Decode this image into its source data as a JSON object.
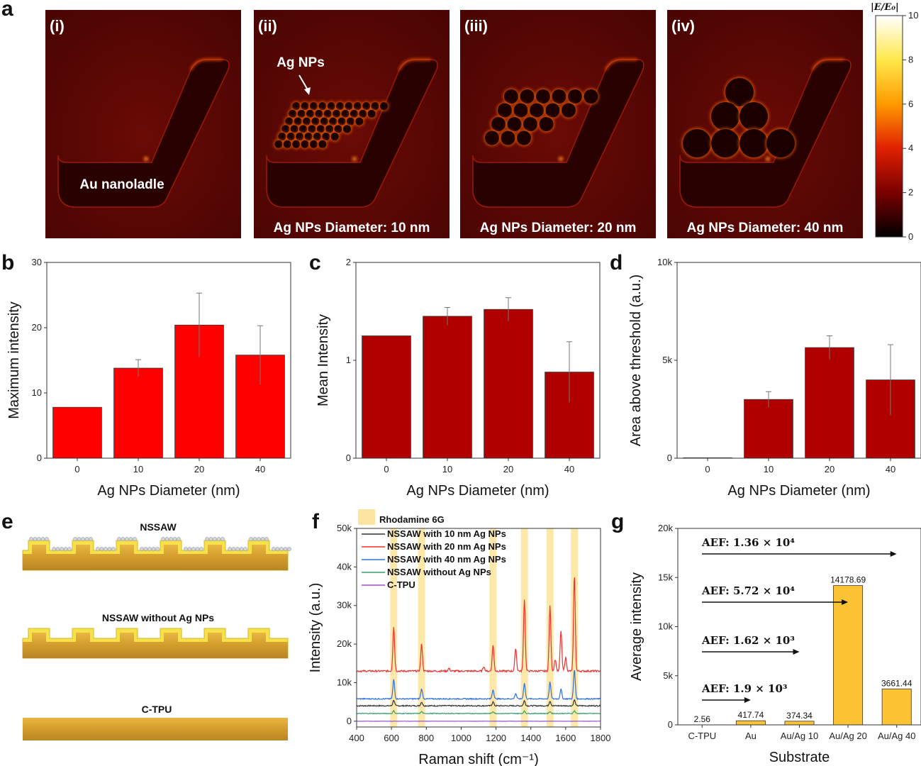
{
  "panel_labels": {
    "a": "a",
    "b": "b",
    "c": "c",
    "d": "d",
    "e": "e",
    "f": "f",
    "g": "g"
  },
  "panel_a": {
    "subpanels": [
      {
        "tag": "(i)",
        "caption": "Au nanoladle",
        "nps": 0
      },
      {
        "tag": "(ii)",
        "caption": "Ag NPs Diameter: 10 nm",
        "annotation": "Ag NPs",
        "nps": 10
      },
      {
        "tag": "(iii)",
        "caption": "Ag NPs Diameter: 20 nm",
        "nps": 20
      },
      {
        "tag": "(iv)",
        "caption": "Ag NPs Diameter: 40 nm",
        "nps": 40
      }
    ],
    "colorbar": {
      "title": "|E/E₀|",
      "ticks": [
        "10",
        "8",
        "6",
        "4",
        "2",
        "0"
      ],
      "stops": [
        "#ffffff",
        "#ffe84a",
        "#ff9a00",
        "#e02000",
        "#7a0000",
        "#000000"
      ]
    }
  },
  "panel_e": {
    "labels": [
      "NSSAW",
      "NSSAW without Ag NPs",
      "C-TPU"
    ]
  },
  "colors": {
    "red": "#ff0000",
    "darkred": "#b00000",
    "gold": "#fcc435",
    "gold_band": "#fde4a0"
  },
  "chart_data": [
    {
      "id": "b",
      "type": "bar",
      "categories": [
        "0",
        "10",
        "20",
        "40"
      ],
      "values": [
        7.8,
        13.8,
        20.4,
        15.8
      ],
      "errors": [
        0,
        1.3,
        4.9,
        4.5
      ],
      "ylim": [
        0,
        30
      ],
      "yticks": [
        "0",
        "10",
        "20",
        "30"
      ],
      "ylabel": "Maximum intensity",
      "xlabel": "Ag NPs Diameter (nm)",
      "color": "#ff0000"
    },
    {
      "id": "c",
      "type": "bar",
      "categories": [
        "0",
        "10",
        "20",
        "40"
      ],
      "values": [
        1.25,
        1.45,
        1.52,
        0.88
      ],
      "errors": [
        0,
        0.09,
        0.12,
        0.31
      ],
      "ylim": [
        0,
        2
      ],
      "yticks": [
        "0",
        "1",
        "2"
      ],
      "ylabel": "Mean Intensity",
      "xlabel": "Ag NPs Diameter (nm)",
      "color": "#b00000"
    },
    {
      "id": "d",
      "type": "bar",
      "categories": [
        "0",
        "10",
        "20",
        "40"
      ],
      "values": [
        20,
        3000,
        5650,
        4000
      ],
      "errors": [
        0,
        400,
        600,
        1800
      ],
      "ylim": [
        0,
        10000
      ],
      "yticks": [
        "0",
        "5k",
        "10k"
      ],
      "ylabel": "Area above threshold (a.u.)",
      "xlabel": "Ag NPs Diameter (nm)",
      "color": "#b00000"
    },
    {
      "id": "f",
      "type": "line",
      "xlim": [
        400,
        1800
      ],
      "ylim": [
        -1500,
        50000
      ],
      "xticks": [
        "400",
        "600",
        "800",
        "1000",
        "1200",
        "1400",
        "1600",
        "1800"
      ],
      "yticks": [
        "0",
        "10k",
        "20k",
        "30k",
        "40k",
        "50k"
      ],
      "xlabel": "Raman shift (cm⁻¹)",
      "ylabel": "Intensity (a.u.)",
      "highlight_label": "Rhodamine 6G",
      "bands": [
        613,
        773,
        1183,
        1363,
        1510,
        1650
      ],
      "series": [
        {
          "name": "NSSAW with 10 nm Ag NPs",
          "color": "#333333",
          "base": 4000,
          "noise": 150,
          "peaks": [
            [
              613,
              1500
            ],
            [
              773,
              1000
            ],
            [
              1183,
              1000
            ],
            [
              1363,
              1300
            ],
            [
              1510,
              1200
            ],
            [
              1650,
              1500
            ]
          ]
        },
        {
          "name": "NSSAW with 20 nm Ag NPs",
          "color": "#ee3030",
          "base": 13000,
          "noise": 220,
          "peaks": [
            [
              613,
              11500
            ],
            [
              773,
              7000
            ],
            [
              930,
              700
            ],
            [
              1130,
              1200
            ],
            [
              1183,
              6800
            ],
            [
              1313,
              6000
            ],
            [
              1363,
              18700
            ],
            [
              1510,
              16800
            ],
            [
              1540,
              3000
            ],
            [
              1573,
              10500
            ],
            [
              1600,
              3500
            ],
            [
              1650,
              25000
            ]
          ]
        },
        {
          "name": "NSSAW with 40 nm Ag NPs",
          "color": "#3070e0",
          "base": 5800,
          "noise": 150,
          "peaks": [
            [
              613,
              5000
            ],
            [
              773,
              2600
            ],
            [
              1183,
              2400
            ],
            [
              1313,
              1400
            ],
            [
              1363,
              4000
            ],
            [
              1510,
              4300
            ],
            [
              1573,
              2500
            ],
            [
              1650,
              7500
            ]
          ]
        },
        {
          "name": "NSSAW without Ag NPs",
          "color": "#30a070",
          "base": 2000,
          "noise": 100,
          "peaks": [
            [
              613,
              700
            ],
            [
              773,
              500
            ],
            [
              1183,
              500
            ],
            [
              1363,
              600
            ],
            [
              1510,
              500
            ],
            [
              1650,
              700
            ]
          ]
        },
        {
          "name": "C-TPU",
          "color": "#9a4fd0",
          "base": 0,
          "noise": 40,
          "peaks": []
        }
      ]
    },
    {
      "id": "g",
      "type": "bar",
      "categories": [
        "C-TPU",
        "Au",
        "Au/Ag 10",
        "Au/Ag 20",
        "Au/Ag 40"
      ],
      "values": [
        2.56,
        417.74,
        374.34,
        14178.69,
        3661.44
      ],
      "value_labels": [
        "2.56",
        "417.74",
        "374.34",
        "14178.69",
        "3661.44"
      ],
      "ylim": [
        0,
        20000
      ],
      "yticks": [
        "0",
        "5k",
        "10k",
        "15k",
        "20k"
      ],
      "ylabel": "Average intensity",
      "xlabel": "Substrate",
      "color": "#fcc435",
      "annotations": [
        {
          "text": "AEF: 1.36 × 10⁴",
          "arrow_to": 4
        },
        {
          "text": "AEF: 5.72 × 10⁴",
          "arrow_to": 3
        },
        {
          "text": "AEF: 1.62 × 10³",
          "arrow_to": 2
        },
        {
          "text": "AEF: 1.9 × 10³",
          "arrow_to": 1
        }
      ]
    }
  ]
}
